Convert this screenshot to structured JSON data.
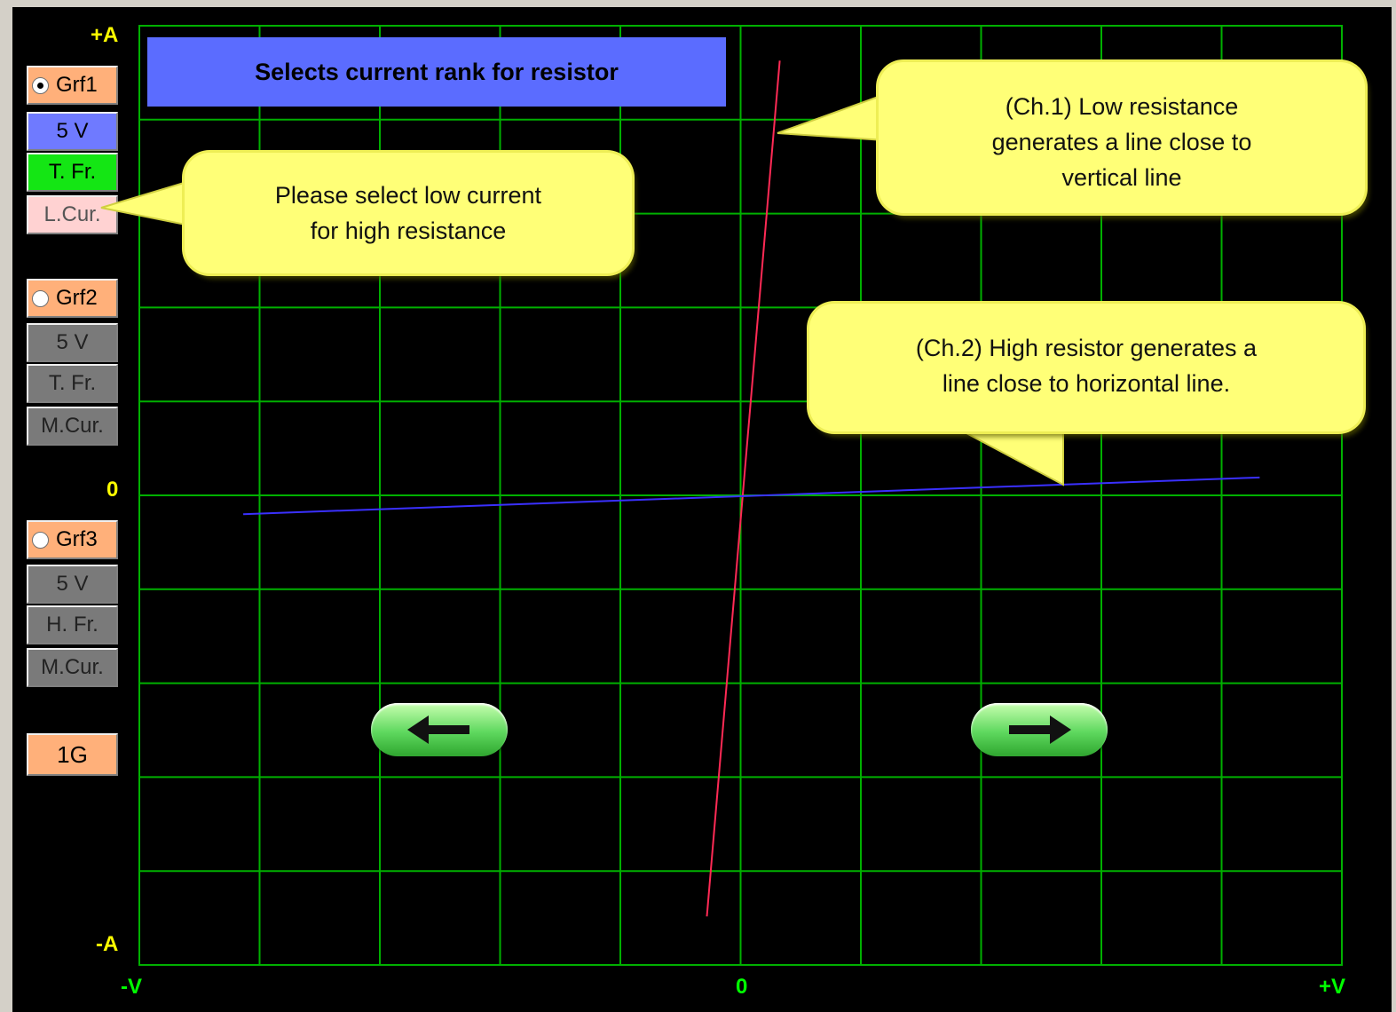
{
  "plot": {
    "axis": {
      "y_top": "+A",
      "y_mid": "0",
      "y_bottom": "-A",
      "x_left": "-V",
      "x_mid": "0",
      "x_right": "+V"
    },
    "grid_color": "#00b000",
    "background": "#000000",
    "axis_label_color": "#ffff00",
    "x_label_color": "#00ff00",
    "trace_ch1_color": "#ff2a55",
    "trace_ch2_color": "#3a30ff"
  },
  "chart_data": {
    "type": "line",
    "xlim": [
      -1,
      1
    ],
    "ylim": [
      -1,
      1
    ],
    "grid": true,
    "series": [
      {
        "points": [
          [
            -0.056,
            -0.895
          ],
          [
            0.065,
            0.924
          ]
        ]
      },
      {
        "points": [
          [
            -0.826,
            -0.04
          ],
          [
            0.862,
            0.038
          ]
        ]
      }
    ]
  },
  "banner": {
    "text": "Selects current rank for resistor",
    "color": "#5b6cff"
  },
  "controls": {
    "grf1": {
      "label": "Grf1",
      "checked": true,
      "voltage": "5 V",
      "freq": "T. Fr.",
      "current": "L.Cur."
    },
    "grf2": {
      "label": "Grf2",
      "checked": false,
      "voltage": "5 V",
      "freq": "T. Fr.",
      "current": "M.Cur."
    },
    "grf3": {
      "label": "Grf3",
      "checked": false,
      "voltage": "5 V",
      "freq": "H. Fr.",
      "current": "M.Cur."
    },
    "scale": "1G",
    "colors": {
      "orange": "#ffb07a",
      "blue": "#6f7aff",
      "green": "#14e614",
      "pink": "#ffd2d2",
      "gray": "#7a7a7a"
    }
  },
  "callouts": {
    "low_current": "Please select low current\nfor high resistance",
    "ch1": "(Ch.1)  Low resistance\ngenerates a line close to\nvertical line",
    "ch2": "(Ch.2) High resistor generates a\nline close to horizontal line."
  },
  "nav": {
    "left_icon": "arrow-left-icon",
    "right_icon": "arrow-right-icon"
  }
}
